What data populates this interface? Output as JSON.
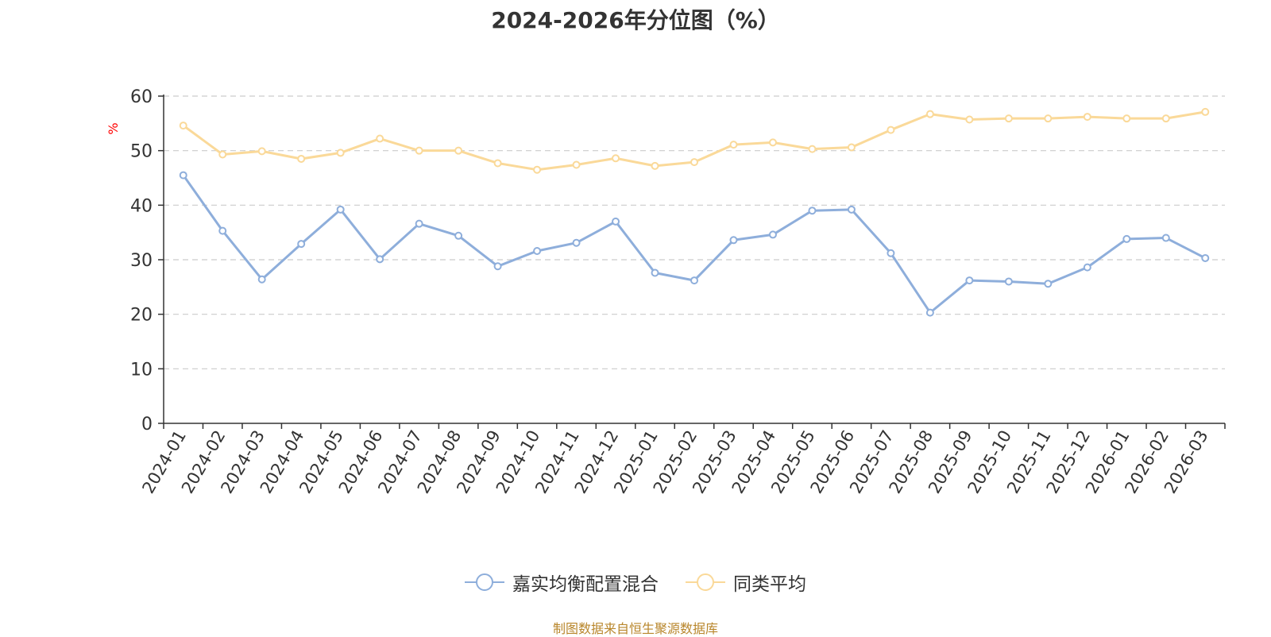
{
  "chart_data": {
    "type": "line",
    "title": "2024-2026年分位图（%）",
    "ylabel": "%",
    "xlabel": "",
    "ylim": [
      0,
      60
    ],
    "yticks": [
      0,
      10,
      20,
      30,
      40,
      50,
      60
    ],
    "grid": true,
    "categories": [
      "2024-01",
      "2024-02",
      "2024-03",
      "2024-04",
      "2024-05",
      "2024-06",
      "2024-07",
      "2024-08",
      "2024-09",
      "2024-10",
      "2024-11",
      "2024-12",
      "2025-01",
      "2025-02",
      "2025-03",
      "2025-04",
      "2025-05",
      "2025-06",
      "2025-07",
      "2025-08",
      "2025-09",
      "2025-10",
      "2025-11",
      "2025-12",
      "2026-01",
      "2026-02",
      "2026-03"
    ],
    "series": [
      {
        "name": "嘉实均衡配置混合",
        "color": "#8eaedb",
        "values": [
          45.5,
          35.3,
          26.4,
          32.9,
          39.2,
          30.1,
          36.6,
          34.4,
          28.8,
          31.6,
          33.1,
          37.0,
          27.6,
          26.2,
          33.6,
          34.6,
          39.0,
          39.2,
          31.2,
          20.3,
          26.2,
          26.0,
          25.6,
          28.6,
          33.8,
          34.0,
          30.3
        ]
      },
      {
        "name": "同类平均",
        "color": "#fad999",
        "values": [
          54.6,
          49.3,
          49.9,
          48.5,
          49.6,
          52.2,
          50.0,
          50.0,
          47.7,
          46.5,
          47.4,
          48.6,
          47.2,
          47.9,
          51.1,
          51.5,
          50.3,
          50.6,
          53.8,
          56.7,
          55.7,
          55.9,
          55.9,
          56.2,
          55.9,
          55.9,
          57.1
        ]
      }
    ],
    "legend_position": "bottom-center",
    "source": "制图数据来自恒生聚源数据库"
  },
  "colors": {
    "axis": "#333333",
    "grid": "#cccccc",
    "ylabel": "#ff0000",
    "source": "#b8862b"
  }
}
